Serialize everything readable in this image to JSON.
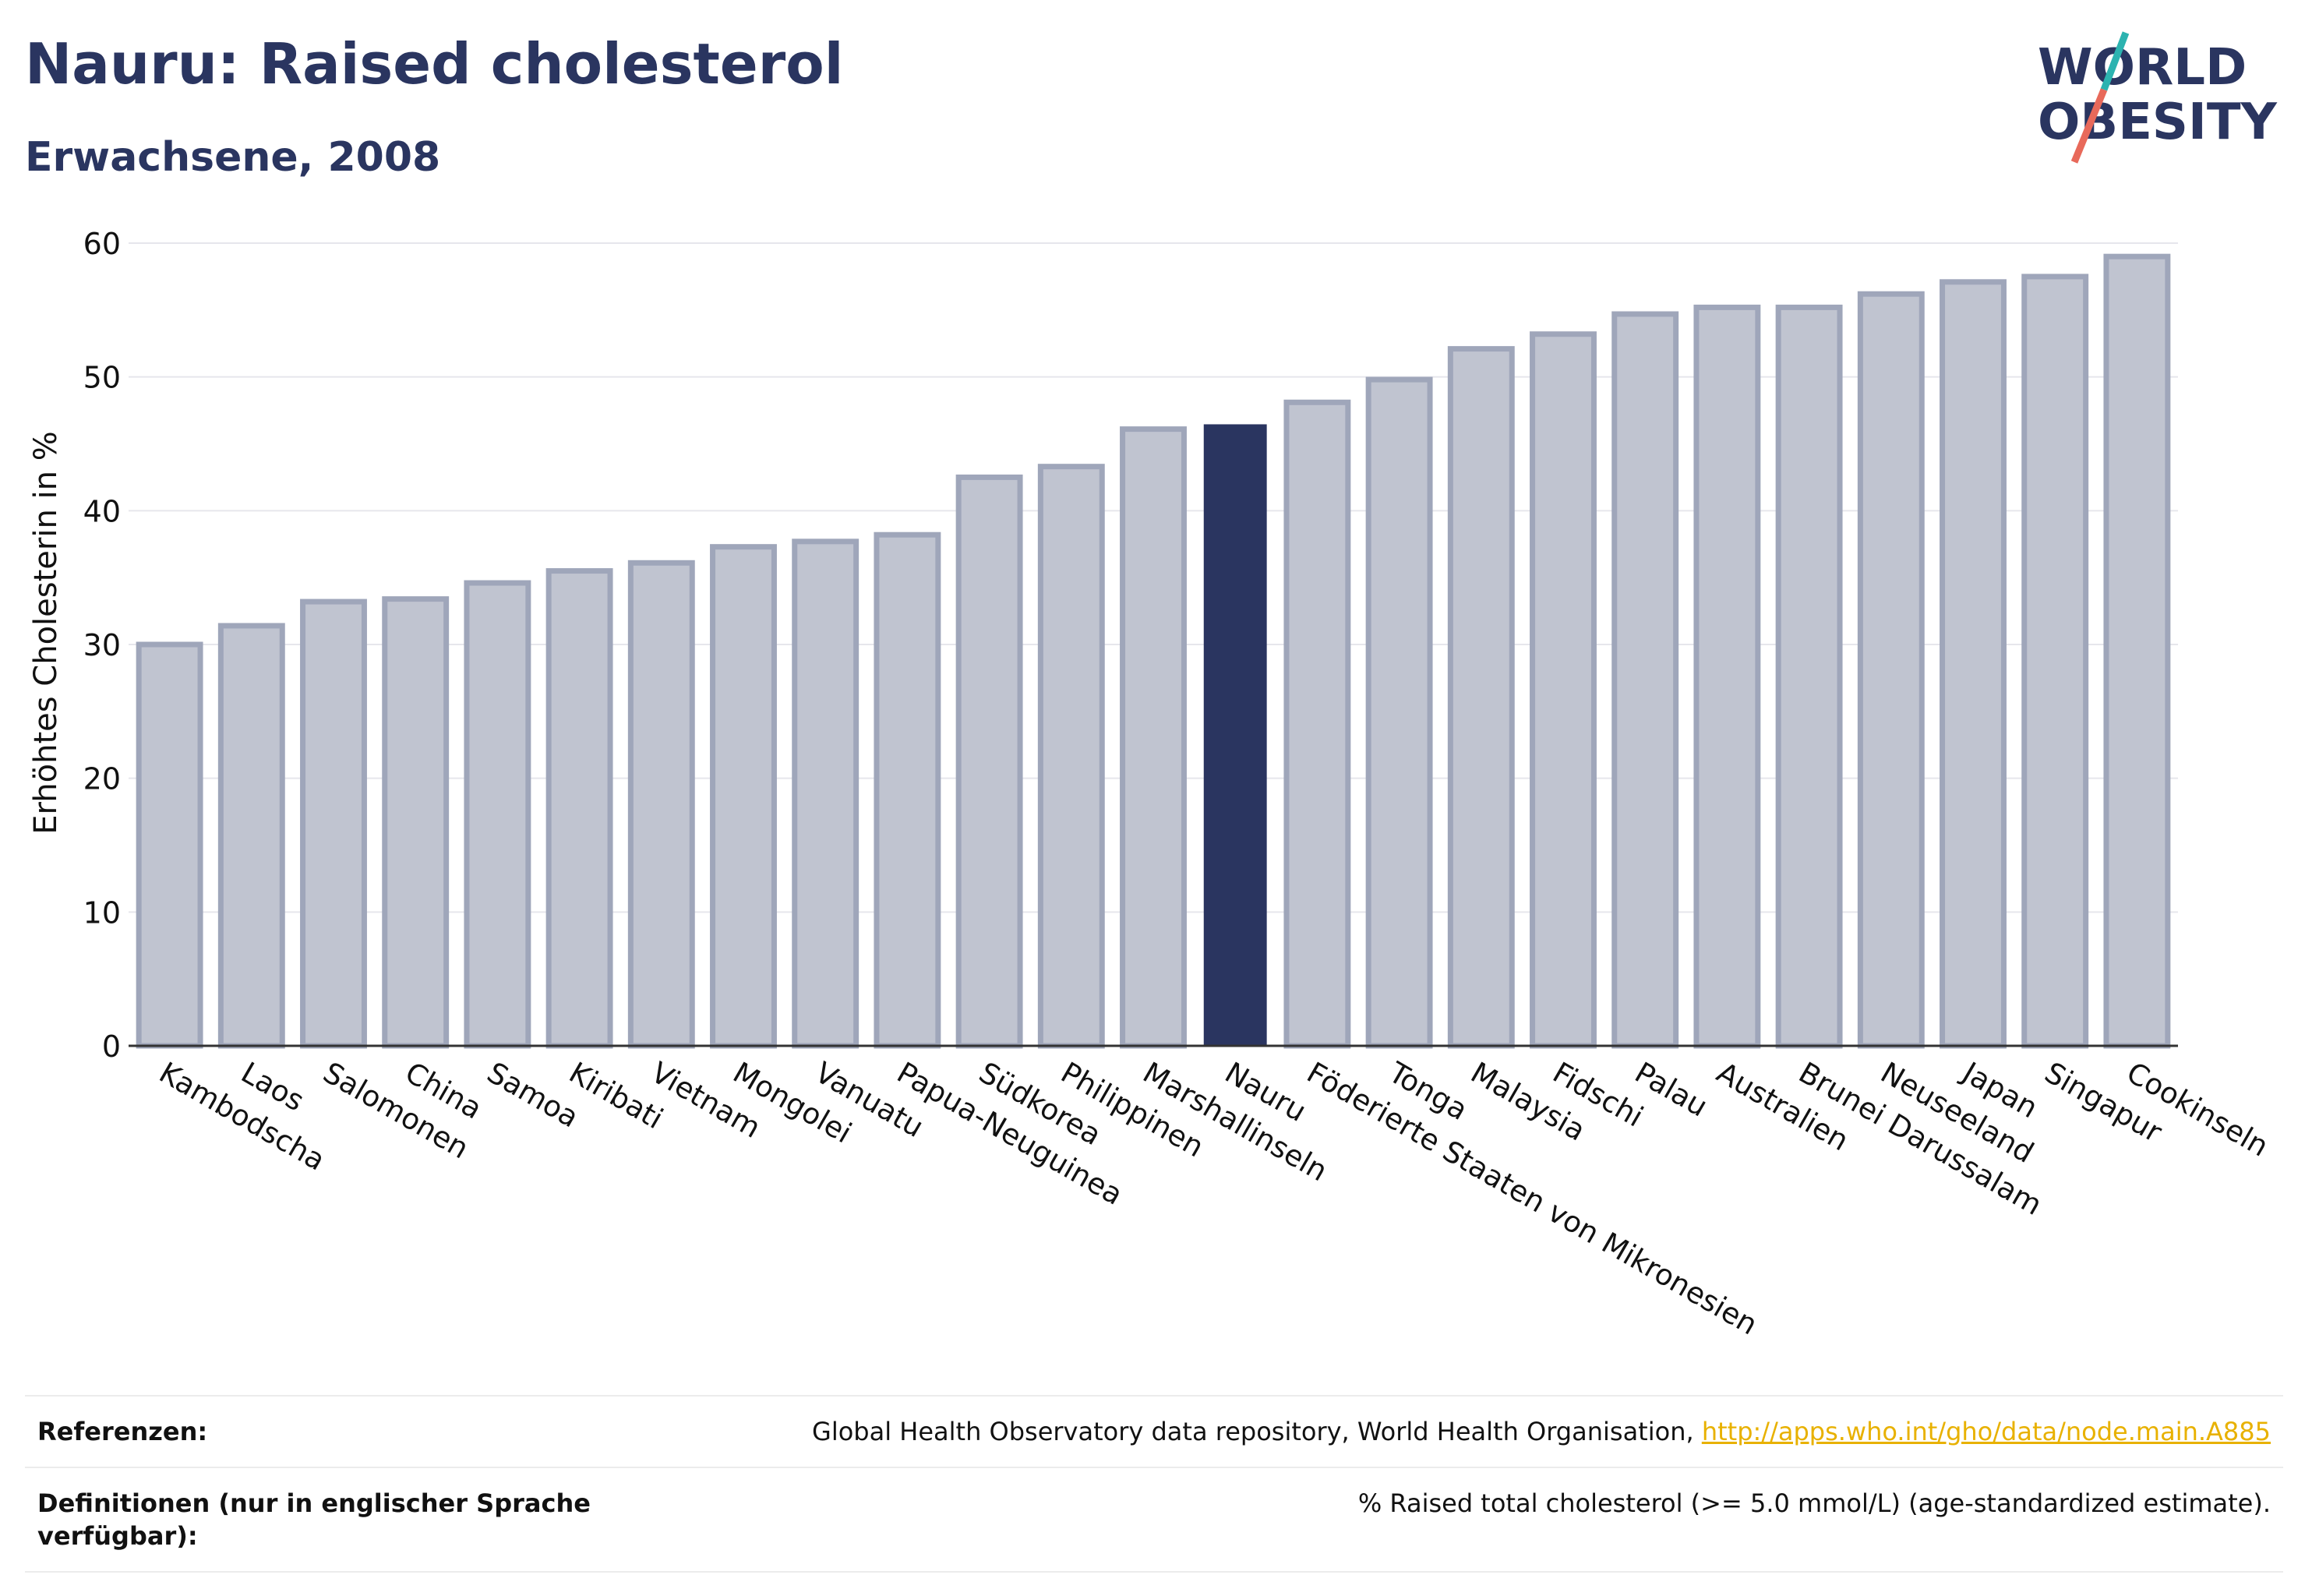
{
  "header": {
    "title": "Nauru: Raised cholesterol",
    "subtitle": "Erwachsene, 2008"
  },
  "logo": {
    "line1": "WORLD",
    "line2": "OBESITY"
  },
  "chart_data": {
    "type": "bar",
    "ylabel": "Erhöhtes Cholesterin in %",
    "ylim": [
      0,
      60
    ],
    "yticks": [
      "0",
      "10",
      "20",
      "30",
      "40",
      "50",
      "60"
    ],
    "grid": true,
    "highlight": "Nauru",
    "colors": {
      "bar": "#c0c4d0",
      "bar_border": "#9fa6ba",
      "highlight": "#2a3560"
    },
    "categories": [
      "Kambodscha",
      "Laos",
      "Salomonen",
      "China",
      "Samoa",
      "Kiribati",
      "Vietnam",
      "Mongolei",
      "Vanuatu",
      "Papua-Neuguinea",
      "Südkorea",
      "Philippinen",
      "Marshallinseln",
      "Nauru",
      "Föderierte Staaten von Mikronesien",
      "Tonga",
      "Malaysia",
      "Fidschi",
      "Palau",
      "Australien",
      "Brunei Darussalam",
      "Neuseeland",
      "Japan",
      "Singapur",
      "Cookinseln"
    ],
    "values": [
      30.0,
      31.4,
      33.2,
      33.4,
      34.6,
      35.5,
      36.1,
      37.3,
      37.7,
      38.2,
      42.5,
      43.3,
      46.1,
      46.4,
      48.1,
      49.8,
      52.1,
      53.2,
      54.7,
      55.2,
      55.2,
      56.2,
      57.1,
      57.5,
      59.0
    ]
  },
  "footer": {
    "ref_label": "Referenzen:",
    "ref_text": "Global Health Observatory data repository, World Health Organisation, ",
    "ref_link": "http://apps.who.int/gho/data/node.main.A885",
    "def_label": "Definitionen (nur in englischer Sprache verfügbar):",
    "def_text": "% Raised total cholesterol (>= 5.0 mmol/L) (age-standardized estimate)."
  }
}
